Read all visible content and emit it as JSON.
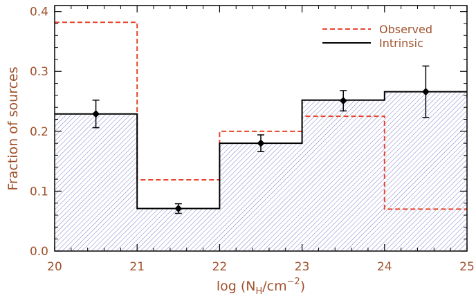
{
  "chart_data": {
    "type": "histogram",
    "xlabel": "log (N_H/cm^-2)",
    "xlabel_parts": {
      "prefix": "log (N",
      "sub": "H",
      "mid": "/cm",
      "sup": "−2",
      "suffix": ")"
    },
    "ylabel": "Fraction of sources",
    "xlim": [
      20,
      25
    ],
    "ylim": [
      0,
      0.41
    ],
    "x_ticks": [
      "20",
      "21",
      "22",
      "23",
      "24",
      "25"
    ],
    "y_ticks": [
      "0.0",
      "0.1",
      "0.2",
      "0.3",
      "0.4"
    ],
    "bin_edges": [
      20,
      21,
      22,
      23,
      24,
      25
    ],
    "series": [
      {
        "name": "Observed",
        "style": "dashed",
        "color": "#e8432b",
        "values": [
          0.382,
          0.119,
          0.2,
          0.225,
          0.07
        ]
      },
      {
        "name": "Intrinsic",
        "style": "solid",
        "color": "#000000",
        "hatched": true,
        "values": [
          0.229,
          0.071,
          0.18,
          0.252,
          0.266
        ]
      }
    ],
    "points": [
      {
        "x": 20.5,
        "y": 0.229,
        "err": 0.023
      },
      {
        "x": 21.5,
        "y": 0.071,
        "err": 0.008
      },
      {
        "x": 22.5,
        "y": 0.18,
        "err": 0.014
      },
      {
        "x": 23.5,
        "y": 0.251,
        "err": 0.017
      },
      {
        "x": 24.5,
        "y": 0.266,
        "err": 0.043
      }
    ],
    "legend_position": "top-right",
    "hatch_color": "#7a7ec8"
  }
}
